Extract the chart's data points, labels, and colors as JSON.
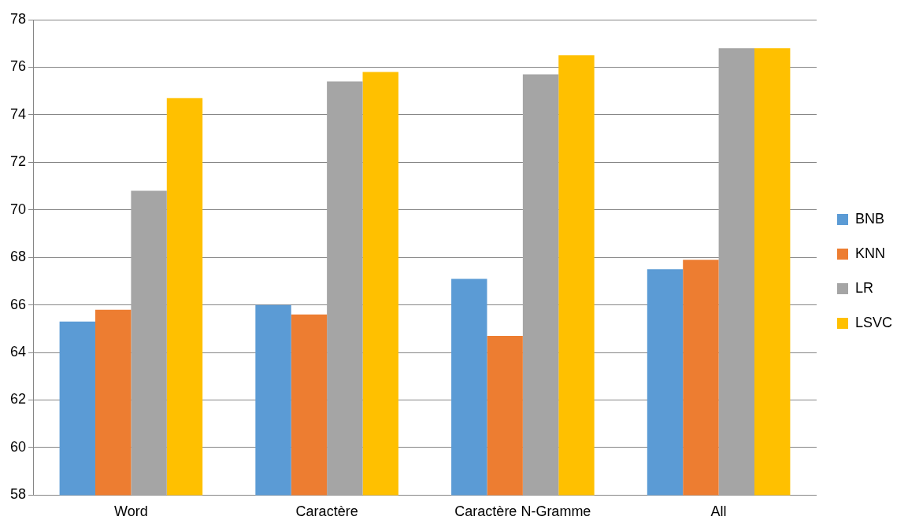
{
  "chart_data": {
    "type": "bar",
    "categories": [
      "Word",
      "Caractère",
      "Caractère N-Gramme",
      "All"
    ],
    "series": [
      {
        "name": "BNB",
        "color": "#5b9bd5",
        "values": [
          65.3,
          66.0,
          67.1,
          67.5
        ]
      },
      {
        "name": "KNN",
        "color": "#ed7d31",
        "values": [
          65.8,
          65.6,
          64.7,
          67.9
        ]
      },
      {
        "name": "LR",
        "color": "#a5a5a5",
        "values": [
          70.8,
          75.4,
          75.7,
          76.8
        ]
      },
      {
        "name": "LSVC",
        "color": "#ffc000",
        "values": [
          74.7,
          75.8,
          76.5,
          76.8
        ]
      }
    ],
    "ylim": [
      58,
      78
    ],
    "yticks": [
      58,
      60,
      62,
      64,
      66,
      68,
      70,
      72,
      74,
      76,
      78
    ],
    "grid": "y",
    "legend": "right"
  }
}
